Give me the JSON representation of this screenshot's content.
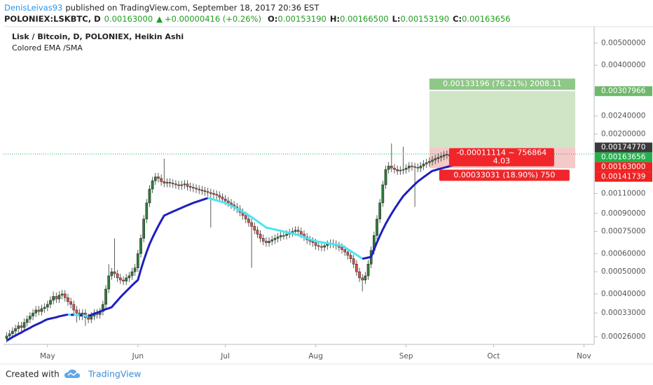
{
  "header": {
    "author": "DenisLeivas93",
    "published": "published on TradingView.com, September 18, 2017 20:36 EST",
    "symbol": "POLONIEX:LSKBTC, D",
    "last": "0.00163000",
    "arrow": "▲",
    "change": "+0.00000416 (+0.26%)",
    "ohlc": [
      [
        "O:",
        "0.00153190"
      ],
      [
        "H:",
        "0.00166500"
      ],
      [
        "L:",
        "0.00153190"
      ],
      [
        "C:",
        "0.00163656"
      ]
    ]
  },
  "footer": {
    "created": "Created with",
    "brand": "TradingView"
  },
  "chart_data": {
    "type": "candlestick",
    "title": "Lisk / Bitcoin, D, POLONIEX, Heikin Ashi",
    "indicator": "Colored EMA /SMA",
    "up_color": "#2f7d3a",
    "down_color": "#d9534f",
    "log": true,
    "grid": false,
    "ylim": [
      0.000244,
      0.0059
    ],
    "xlim": [
      -1.1,
      201.5
    ],
    "yticks": [
      {
        "value": 0.005,
        "label": "0.00500000"
      },
      {
        "value": 0.004,
        "label": "0.00400000"
      },
      {
        "value": 0.0024,
        "label": "0.00240000"
      },
      {
        "value": 0.002,
        "label": "0.00200000"
      },
      {
        "value": 0.0011,
        "label": "0.00110000"
      },
      {
        "value": 0.0009,
        "label": "0.00090000"
      },
      {
        "value": 0.00075,
        "label": "0.00075000"
      },
      {
        "value": 0.0006,
        "label": "0.00060000"
      },
      {
        "value": 0.0005,
        "label": "0.00050000"
      },
      {
        "value": 0.0004,
        "label": "0.00040000"
      },
      {
        "value": 0.00033,
        "label": "0.00033000"
      },
      {
        "value": 0.00026,
        "label": "0.00026000"
      }
    ],
    "xticks": [
      {
        "value": 14,
        "label": "May"
      },
      {
        "value": 45,
        "label": "Jun"
      },
      {
        "value": 75,
        "label": "Jul"
      },
      {
        "value": 106,
        "label": "Aug"
      },
      {
        "value": 137,
        "label": "Sep"
      },
      {
        "value": 167,
        "label": "Oct"
      },
      {
        "value": 198,
        "label": "Nov"
      }
    ],
    "ohlc": [
      [
        0.000255,
        0.000272,
        0.000245,
        0.000262
      ],
      [
        0.000262,
        0.000279,
        0.000252,
        0.000268
      ],
      [
        0.000268,
        0.000286,
        0.000257,
        0.000275
      ],
      [
        0.000275,
        0.000293,
        0.000264,
        0.000282
      ],
      [
        0.000282,
        0.000302,
        0.000271,
        0.00029
      ],
      [
        0.00029,
        0.000302,
        0.000274,
        0.000285
      ],
      [
        0.000285,
        0.000312,
        0.000274,
        0.0003
      ],
      [
        0.0003,
        0.000322,
        0.000288,
        0.00031
      ],
      [
        0.00031,
        0.000333,
        0.000298,
        0.00032
      ],
      [
        0.00032,
        0.000343,
        0.000307,
        0.00033
      ],
      [
        0.00033,
        0.000354,
        0.000317,
        0.00034
      ],
      [
        0.00034,
        0.000354,
        0.000322,
        0.000335
      ],
      [
        0.000335,
        0.000359,
        0.000322,
        0.000345
      ],
      [
        0.000345,
        0.000364,
        0.000331,
        0.00035
      ],
      [
        0.00035,
        0.000374,
        0.000336,
        0.00036
      ],
      [
        0.00036,
        0.00039,
        0.000346,
        0.000375
      ],
      [
        0.000375,
        0.00041,
        0.00036,
        0.00039
      ],
      [
        0.00039,
        0.000406,
        0.000365,
        0.00038
      ],
      [
        0.00038,
        0.000411,
        0.000365,
        0.000395
      ],
      [
        0.000395,
        0.000416,
        0.000379,
        0.0004
      ],
      [
        0.0004,
        0.000416,
        0.00037,
        0.000385
      ],
      [
        0.000385,
        0.0004,
        0.000355,
        0.00037
      ],
      [
        0.00037,
        0.000385,
        0.000346,
        0.00036
      ],
      [
        0.00036,
        0.000374,
        0.000326,
        0.00034
      ],
      [
        0.00034,
        0.000354,
        0.0003,
        0.00033
      ],
      [
        0.00033,
        0.000343,
        0.000307,
        0.00032
      ],
      [
        0.00032,
        0.000343,
        0.000307,
        0.00033
      ],
      [
        0.00033,
        0.000343,
        0.00029,
        0.000315
      ],
      [
        0.000315,
        0.000328,
        0.000298,
        0.00031
      ],
      [
        0.00031,
        0.000333,
        0.000298,
        0.00032
      ],
      [
        0.00032,
        0.000343,
        0.000307,
        0.00033
      ],
      [
        0.00033,
        0.000343,
        0.000312,
        0.000325
      ],
      [
        0.000325,
        0.000348,
        0.000312,
        0.000335
      ],
      [
        0.000335,
        0.000374,
        0.000322,
        0.00036
      ],
      [
        0.00036,
        0.000437,
        0.000346,
        0.00042
      ],
      [
        0.00042,
        0.00054,
        0.000403,
        0.00048
      ],
      [
        0.00048,
        0.00052,
        0.000461,
        0.0005
      ],
      [
        0.0005,
        0.0007,
        0.00047,
        0.00049
      ],
      [
        0.00049,
        0.00051,
        0.000451,
        0.00047
      ],
      [
        0.00047,
        0.000489,
        0.000442,
        0.00046
      ],
      [
        0.00046,
        0.000478,
        0.000437,
        0.000455
      ],
      [
        0.000455,
        0.000489,
        0.000437,
        0.00047
      ],
      [
        0.00047,
        0.000499,
        0.000451,
        0.00048
      ],
      [
        0.00048,
        0.00052,
        0.000461,
        0.0005
      ],
      [
        0.0005,
        0.000541,
        0.00048,
        0.00052
      ],
      [
        0.00052,
        0.000624,
        0.000499,
        0.0006
      ],
      [
        0.0006,
        0.000728,
        0.000576,
        0.0007
      ],
      [
        0.0007,
        0.000884,
        0.000672,
        0.00085
      ],
      [
        0.00085,
        0.00104,
        0.000816,
        0.001
      ],
      [
        0.001,
        0.001196,
        0.00096,
        0.00115
      ],
      [
        0.00115,
        0.0013,
        0.001104,
        0.00125
      ],
      [
        0.00125,
        0.001352,
        0.0012,
        0.0013
      ],
      [
        0.0013,
        0.001352,
        0.001229,
        0.00128
      ],
      [
        0.00128,
        0.001331,
        0.00119,
        0.00124
      ],
      [
        0.00124,
        0.00156,
        0.001171,
        0.00122
      ],
      [
        0.00122,
        0.001279,
        0.001171,
        0.00123
      ],
      [
        0.00123,
        0.001279,
        0.001171,
        0.00122
      ],
      [
        0.00122,
        0.001269,
        0.001162,
        0.00121
      ],
      [
        0.00121,
        0.001258,
        0.001152,
        0.0012
      ],
      [
        0.0012,
        0.001248,
        0.001142,
        0.00119
      ],
      [
        0.00119,
        0.001248,
        0.001142,
        0.0012
      ],
      [
        0.0012,
        0.001258,
        0.001152,
        0.00121
      ],
      [
        0.00121,
        0.001258,
        0.001133,
        0.00118
      ],
      [
        0.00118,
        0.001227,
        0.001123,
        0.00117
      ],
      [
        0.00117,
        0.001217,
        0.001114,
        0.00116
      ],
      [
        0.00116,
        0.001206,
        0.001104,
        0.00115
      ],
      [
        0.00115,
        0.001196,
        0.001094,
        0.00114
      ],
      [
        0.00114,
        0.001186,
        0.001085,
        0.00113
      ],
      [
        0.00113,
        0.001175,
        0.001075,
        0.00112
      ],
      [
        0.00112,
        0.001165,
        0.001066,
        0.00111
      ],
      [
        0.00111,
        0.001154,
        0.00078,
        0.0011
      ],
      [
        0.0011,
        0.001144,
        0.001046,
        0.00109
      ],
      [
        0.00109,
        0.001134,
        0.001037,
        0.00108
      ],
      [
        0.00108,
        0.001123,
        0.001018,
        0.00106
      ],
      [
        0.00106,
        0.001102,
        0.000998,
        0.00104
      ],
      [
        0.00104,
        0.001082,
        0.000979,
        0.00102
      ],
      [
        0.00102,
        0.001061,
        0.00096,
        0.001
      ],
      [
        0.001,
        0.00104,
        0.000941,
        0.00098
      ],
      [
        0.00098,
        0.001019,
        0.000922,
        0.00096
      ],
      [
        0.00096,
        0.000998,
        0.000902,
        0.00094
      ],
      [
        0.00094,
        0.000978,
        0.000874,
        0.00091
      ],
      [
        0.00091,
        0.000946,
        0.000845,
        0.00088
      ],
      [
        0.00088,
        0.000915,
        0.000816,
        0.00085
      ],
      [
        0.00085,
        0.000884,
        0.000787,
        0.00082
      ],
      [
        0.00082,
        0.000853,
        0.00052,
        0.00079
      ],
      [
        0.00079,
        0.000822,
        0.00073,
        0.00076
      ],
      [
        0.00076,
        0.00079,
        0.000701,
        0.00073
      ],
      [
        0.00073,
        0.000759,
        0.000672,
        0.0007
      ],
      [
        0.0007,
        0.000728,
        0.000653,
        0.00068
      ],
      [
        0.00068,
        0.000707,
        0.000643,
        0.00067
      ],
      [
        0.00067,
        0.000707,
        0.000643,
        0.00068
      ],
      [
        0.00068,
        0.000718,
        0.000653,
        0.00069
      ],
      [
        0.00069,
        0.000728,
        0.000662,
        0.0007
      ],
      [
        0.0007,
        0.000738,
        0.000672,
        0.00071
      ],
      [
        0.00071,
        0.000749,
        0.000682,
        0.00072
      ],
      [
        0.00072,
        0.000749,
        0.000691,
        0.00072
      ],
      [
        0.00072,
        0.000759,
        0.000691,
        0.00073
      ],
      [
        0.00073,
        0.00077,
        0.000701,
        0.00074
      ],
      [
        0.00074,
        0.00078,
        0.00071,
        0.00075
      ],
      [
        0.00075,
        0.00079,
        0.00072,
        0.00076
      ],
      [
        0.00076,
        0.00079,
        0.00072,
        0.00075
      ],
      [
        0.00075,
        0.00078,
        0.000701,
        0.00073
      ],
      [
        0.00073,
        0.000759,
        0.000682,
        0.00071
      ],
      [
        0.00071,
        0.000738,
        0.000662,
        0.00069
      ],
      [
        0.00069,
        0.000718,
        0.000653,
        0.00068
      ],
      [
        0.00068,
        0.000707,
        0.000643,
        0.00067
      ],
      [
        0.00067,
        0.000697,
        0.000624,
        0.00065
      ],
      [
        0.00065,
        0.000676,
        0.000619,
        0.000645
      ],
      [
        0.000645,
        0.000671,
        0.000614,
        0.00064
      ],
      [
        0.00064,
        0.000676,
        0.000614,
        0.00065
      ],
      [
        0.00065,
        0.000686,
        0.000624,
        0.00066
      ],
      [
        0.00066,
        0.000692,
        0.000634,
        0.000665
      ],
      [
        0.000665,
        0.000692,
        0.000634,
        0.00066
      ],
      [
        0.00066,
        0.000686,
        0.000624,
        0.00065
      ],
      [
        0.00065,
        0.000676,
        0.000614,
        0.00064
      ],
      [
        0.00064,
        0.000666,
        0.0006,
        0.000625
      ],
      [
        0.000625,
        0.00065,
        0.000586,
        0.00061
      ],
      [
        0.00061,
        0.000634,
        0.000566,
        0.00059
      ],
      [
        0.00059,
        0.000614,
        0.000547,
        0.00057
      ],
      [
        0.00057,
        0.000593,
        0.000518,
        0.00054
      ],
      [
        0.00054,
        0.000562,
        0.00048,
        0.0005
      ],
      [
        0.0005,
        0.00052,
        0.000451,
        0.00047
      ],
      [
        0.00047,
        0.000489,
        0.00041,
        0.00046
      ],
      [
        0.00046,
        0.000499,
        0.000442,
        0.00048
      ],
      [
        0.00048,
        0.000562,
        0.000461,
        0.00054
      ],
      [
        0.00054,
        0.000645,
        0.000518,
        0.00062
      ],
      [
        0.00062,
        0.000749,
        0.000595,
        0.00072
      ],
      [
        0.00072,
        0.000884,
        0.000691,
        0.00085
      ],
      [
        0.00085,
        0.00104,
        0.000816,
        0.001
      ],
      [
        0.001,
        0.001248,
        0.00096,
        0.0012
      ],
      [
        0.0012,
        0.001456,
        0.001152,
        0.0014
      ],
      [
        0.0014,
        0.001508,
        0.001344,
        0.00145
      ],
      [
        0.00145,
        0.00182,
        0.001363,
        0.00142
      ],
      [
        0.00142,
        0.001477,
        0.001344,
        0.0014
      ],
      [
        0.0014,
        0.001456,
        0.001325,
        0.00138
      ],
      [
        0.00138,
        0.001446,
        0.001325,
        0.00139
      ],
      [
        0.00139,
        0.00176,
        0.001334,
        0.0014
      ],
      [
        0.0014,
        0.001477,
        0.001344,
        0.00142
      ],
      [
        0.00142,
        0.001508,
        0.001363,
        0.00145
      ],
      [
        0.00145,
        0.001508,
        0.001382,
        0.00144
      ],
      [
        0.00144,
        0.001498,
        0.00096,
        0.00143
      ],
      [
        0.00143,
        0.001487,
        0.001363,
        0.00142
      ],
      [
        0.00142,
        0.001508,
        0.001363,
        0.00145
      ],
      [
        0.00145,
        0.001539,
        0.001392,
        0.00148
      ],
      [
        0.00148,
        0.00156,
        0.001421,
        0.0015
      ],
      [
        0.0015,
        0.001581,
        0.00144,
        0.00152
      ],
      [
        0.00152,
        0.001602,
        0.001459,
        0.00154
      ],
      [
        0.00154,
        0.001622,
        0.001478,
        0.00156
      ],
      [
        0.00156,
        0.001643,
        0.001498,
        0.00158
      ],
      [
        0.00158,
        0.001664,
        0.001517,
        0.0016
      ],
      [
        0.0016,
        0.001685,
        0.001536,
        0.00162
      ],
      [
        0.00162,
        0.001695,
        0.001555,
        0.00163
      ],
      [
        0.00163,
        0.001695,
        0.001536,
        0.0016
      ],
      [
        0.0016,
        0.001674,
        0.001536,
        0.00161
      ],
      [
        0.0015319,
        0.001665,
        0.0015319,
        0.00163656
      ]
    ],
    "ema": {
      "rising_color": "#1f1fbf",
      "falling_color": "#49e6f0",
      "values": [
        0.00025,
        0.000254,
        0.000259,
        0.000263,
        0.000267,
        0.000271,
        0.000276,
        0.00028,
        0.000284,
        0.000289,
        0.000293,
        0.000297,
        0.000301,
        0.000306,
        0.00031,
        0.000312,
        0.000314,
        0.000316,
        0.000319,
        0.000321,
        0.000323,
        0.000325,
        0.000324,
        0.000324,
        0.000323,
        0.000322,
        0.000322,
        0.000321,
        0.00032,
        0.000324,
        0.000328,
        0.000331,
        0.000335,
        0.000339,
        0.000343,
        0.000346,
        0.00035,
        0.000362,
        0.000374,
        0.000387,
        0.000399,
        0.000411,
        0.000423,
        0.000436,
        0.000448,
        0.00046,
        0.00051,
        0.00056,
        0.00061,
        0.00066,
        0.000704,
        0.000748,
        0.000792,
        0.000836,
        0.00088,
        0.000892,
        0.000904,
        0.000916,
        0.000928,
        0.00094,
        0.000952,
        0.000964,
        0.000976,
        0.000988,
        0.001,
        0.00101,
        0.00102,
        0.00103,
        0.00104,
        0.00105,
        0.001042,
        0.001033,
        0.001025,
        0.001017,
        0.001008,
        0.001,
        0.000986,
        0.000971,
        0.000957,
        0.000943,
        0.000929,
        0.000914,
        0.0009,
        0.000883,
        0.000866,
        0.000849,
        0.000831,
        0.000814,
        0.000797,
        0.00078,
        0.000775,
        0.00077,
        0.000765,
        0.00076,
        0.000755,
        0.00075,
        0.000745,
        0.00074,
        0.000735,
        0.00073,
        0.000723,
        0.000716,
        0.000709,
        0.000701,
        0.000694,
        0.000687,
        0.00068,
        0.000677,
        0.000673,
        0.00067,
        0.000667,
        0.000663,
        0.00066,
        0.000657,
        0.000653,
        0.00065,
        0.000639,
        0.000627,
        0.000616,
        0.000604,
        0.000593,
        0.000581,
        0.00057,
        0.000573,
        0.000577,
        0.00058,
        0.000626,
        0.000672,
        0.000718,
        0.000764,
        0.00081,
        0.000853,
        0.000897,
        0.00094,
        0.000983,
        0.001027,
        0.00107,
        0.001104,
        0.001138,
        0.001172,
        0.001206,
        0.00124,
        0.001268,
        0.001296,
        0.001324,
        0.001352,
        0.00138,
        0.001391,
        0.001403,
        0.001414,
        0.001425,
        0.001436,
        0.001448,
        0.001459,
        0.00147
      ]
    },
    "price_labels": [
      {
        "value": 0.00307966,
        "label": "0.00307966",
        "color": "#6fb86a"
      },
      {
        "value": 0.0017477,
        "label": "0.00174770",
        "color": "#3a3a3a"
      },
      {
        "value": 0.00163656,
        "label": "0.00163656",
        "color": "#22b14c",
        "line": true
      },
      {
        "value": 0.00163,
        "label": "0.00163000",
        "color": "#ee2222"
      },
      {
        "value": 0.00141739,
        "label": "0.00141739",
        "color": "#ee2222"
      }
    ],
    "position": {
      "target_label": "0.00133196 (76.21%) 2008.11",
      "pl_label": "-0.00011114 ~ 756864",
      "rr_label": "4.03",
      "stop_label": "0.00033031 (18.90%) 750",
      "profit_color": "#cfe5c6",
      "loss_color": "#f6c9c9",
      "label_profit_color": "#8fc788",
      "label_loss_color": "#f0262a"
    }
  }
}
